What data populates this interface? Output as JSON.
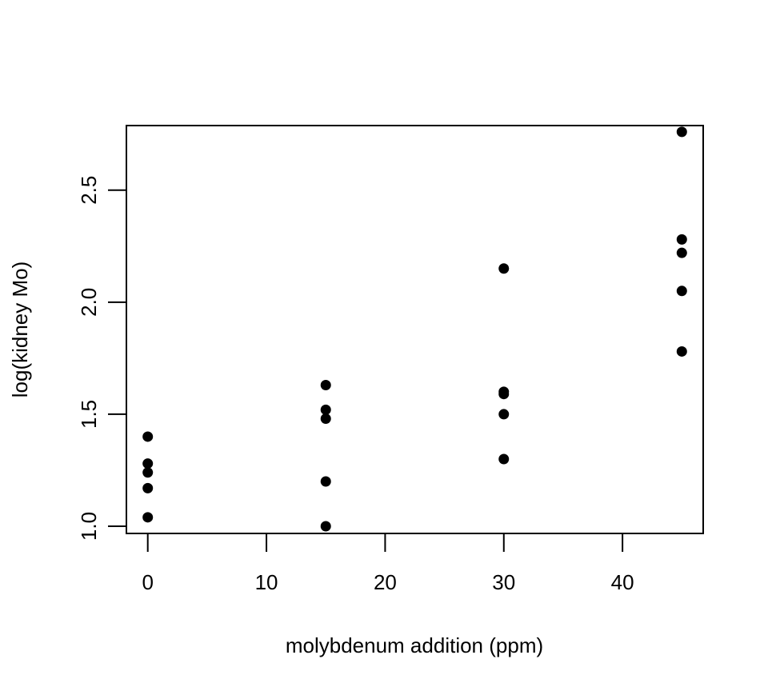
{
  "chart_data": {
    "type": "scatter",
    "title": "",
    "xlabel": "molybdenum addition (ppm)",
    "ylabel": "log(kidney Mo)",
    "xlim": [
      -1.8,
      46.8
    ],
    "ylim": [
      0.968,
      2.788
    ],
    "x_ticks": [
      0,
      10,
      20,
      30,
      40
    ],
    "y_ticks": [
      1.0,
      1.5,
      2.0,
      2.5
    ],
    "x_tick_labels": [
      "0",
      "10",
      "20",
      "30",
      "40"
    ],
    "y_tick_labels": [
      "1.0",
      "1.5",
      "2.0",
      "2.5"
    ],
    "grid": false,
    "legend": "none",
    "marker_color": "#000000",
    "points": [
      {
        "x": 0,
        "y": 1.4
      },
      {
        "x": 0,
        "y": 1.28
      },
      {
        "x": 0,
        "y": 1.24
      },
      {
        "x": 0,
        "y": 1.17
      },
      {
        "x": 0,
        "y": 1.04
      },
      {
        "x": 15,
        "y": 1.63
      },
      {
        "x": 15,
        "y": 1.52
      },
      {
        "x": 15,
        "y": 1.48
      },
      {
        "x": 15,
        "y": 1.2
      },
      {
        "x": 15,
        "y": 1.0
      },
      {
        "x": 30,
        "y": 2.15
      },
      {
        "x": 30,
        "y": 1.6
      },
      {
        "x": 30,
        "y": 1.59
      },
      {
        "x": 30,
        "y": 1.5
      },
      {
        "x": 30,
        "y": 1.3
      },
      {
        "x": 45,
        "y": 2.76
      },
      {
        "x": 45,
        "y": 2.28
      },
      {
        "x": 45,
        "y": 2.22
      },
      {
        "x": 45,
        "y": 2.05
      },
      {
        "x": 45,
        "y": 1.78
      }
    ]
  }
}
